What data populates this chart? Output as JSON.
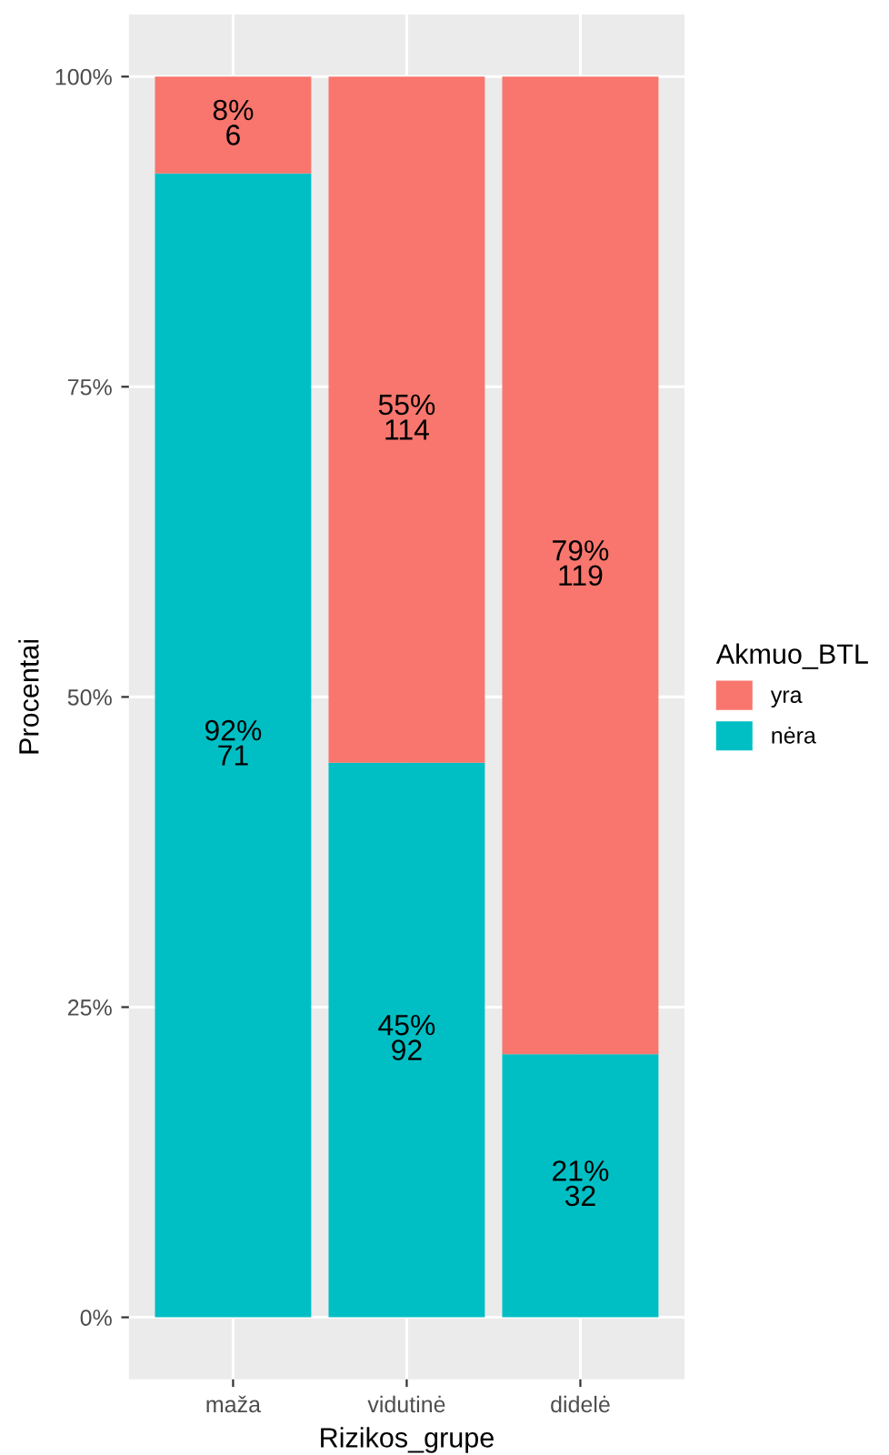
{
  "chart_data": {
    "type": "bar",
    "stacked": true,
    "xlabel": "Rizikos_grupe",
    "ylabel": "Procentai",
    "legend_title": "Akmuo_BTL",
    "legend": "right",
    "categories": [
      "maža",
      "vidutinė",
      "didelė"
    ],
    "series": [
      {
        "name": "nėra",
        "color": "#00bfc4",
        "values": [
          92.2,
          44.7,
          21.2
        ],
        "value_labels": [
          "92%\n71",
          "45%\n92",
          "21%\n32"
        ]
      },
      {
        "name": "yra",
        "color": "#f8766d",
        "values": [
          7.8,
          55.3,
          78.8
        ],
        "value_labels": [
          "8%\n6",
          "55%\n114",
          "79%\n119"
        ]
      }
    ],
    "ylim": [
      -5,
      105
    ],
    "yticks": [
      {
        "value": 0,
        "label": "0%"
      },
      {
        "value": 25,
        "label": "25%"
      },
      {
        "value": 50,
        "label": "50%"
      },
      {
        "value": 75,
        "label": "75%"
      },
      {
        "value": 100,
        "label": "100%"
      }
    ],
    "grid": true
  }
}
